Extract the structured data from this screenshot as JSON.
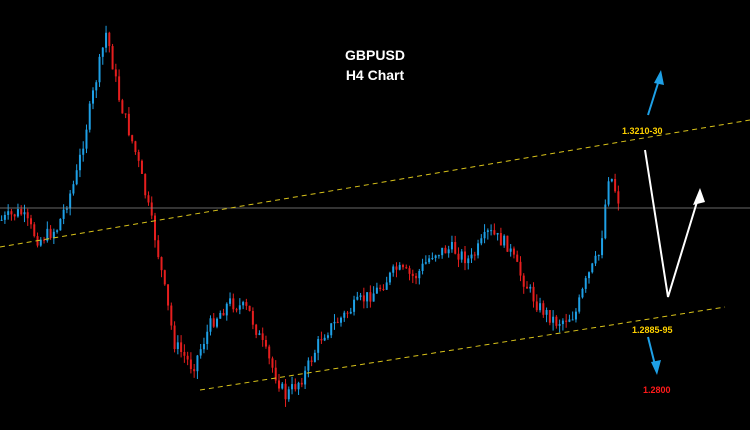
{
  "chart_data": {
    "type": "candlestick",
    "title": "GBPUSD",
    "subtitle": "H4 Chart",
    "levels": [
      {
        "label": "1.3210-30",
        "color": "#ffd200"
      },
      {
        "label": "1.2885-95",
        "color": "#ffd200"
      },
      {
        "label": "1.2800",
        "color": "#ff1a1a"
      }
    ],
    "colors": {
      "bull": "#1ea0e6",
      "bear": "#e61e1e",
      "trendline": "#d8c21a",
      "hline": "#8a8a8a",
      "path": "#ffffff",
      "up_arrow": "#1ea0e6",
      "down_arrow": "#1ea0e6"
    },
    "price_trend": [
      [
        0,
        0.5
      ],
      [
        0.03,
        0.48
      ],
      [
        0.06,
        0.55
      ],
      [
        0.09,
        0.52
      ],
      [
        0.12,
        0.4
      ],
      [
        0.15,
        0.18
      ],
      [
        0.17,
        0.04
      ],
      [
        0.19,
        0.2
      ],
      [
        0.22,
        0.35
      ],
      [
        0.25,
        0.55
      ],
      [
        0.28,
        0.8
      ],
      [
        0.31,
        0.86
      ],
      [
        0.34,
        0.75
      ],
      [
        0.37,
        0.7
      ],
      [
        0.4,
        0.72
      ],
      [
        0.43,
        0.83
      ],
      [
        0.46,
        0.93
      ],
      [
        0.49,
        0.88
      ],
      [
        0.52,
        0.78
      ],
      [
        0.55,
        0.74
      ],
      [
        0.58,
        0.7
      ],
      [
        0.61,
        0.67
      ],
      [
        0.64,
        0.62
      ],
      [
        0.67,
        0.64
      ],
      [
        0.7,
        0.58
      ],
      [
        0.73,
        0.57
      ],
      [
        0.76,
        0.6
      ],
      [
        0.79,
        0.53
      ],
      [
        0.82,
        0.56
      ],
      [
        0.84,
        0.63
      ],
      [
        0.87,
        0.71
      ],
      [
        0.9,
        0.75
      ],
      [
        0.93,
        0.73
      ],
      [
        0.95,
        0.64
      ],
      [
        0.97,
        0.58
      ],
      [
        0.985,
        0.38
      ],
      [
        1.0,
        0.45
      ]
    ]
  }
}
